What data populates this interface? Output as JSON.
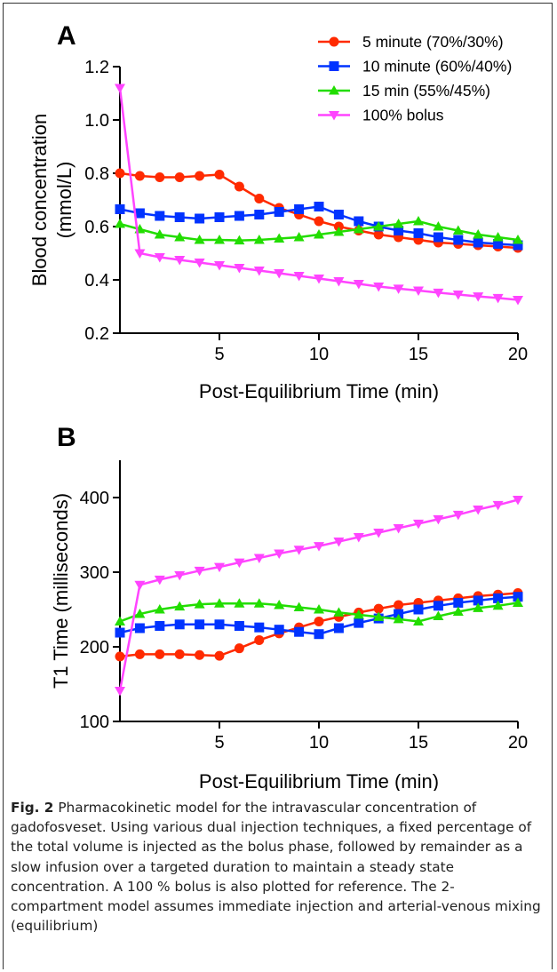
{
  "caption": {
    "label": "Fig. 2",
    "text": "Pharmacokinetic model for the intravascular concentration of gadofosveset. Using various dual injection techniques, a fixed percentage of the total volume is injected as the bolus phase, followed by remainder as a slow infusion over a targeted duration to maintain a steady state concentration. A 100 % bolus is also plotted for reference. The 2-compartment model assumes immediate injection and arterial-venous mixing (equilibrium)"
  },
  "chart_data": [
    {
      "panel": "A",
      "type": "line",
      "xlabel": "Post-Equilibrium Time (min)",
      "ylabel_line1": "Blood concentration",
      "ylabel_line2": "(mmol/L)",
      "xlim": [
        0,
        20
      ],
      "ylim": [
        0.2,
        1.2
      ],
      "xticks": [
        5,
        10,
        15,
        20
      ],
      "yticks": [
        0.2,
        0.4,
        0.6,
        0.8,
        1.0,
        1.2
      ],
      "ytick_labels": [
        "0.2",
        "0.4",
        "0.6",
        "0.8",
        "1.0",
        "1.2"
      ],
      "legend_position": "top-right",
      "x": [
        0,
        1,
        2,
        3,
        4,
        5,
        6,
        7,
        8,
        9,
        10,
        11,
        12,
        13,
        14,
        15,
        16,
        17,
        18,
        19,
        20
      ],
      "series": [
        {
          "name": "5 minute (70%/30%)",
          "color": "#ff2a00",
          "marker": "circle",
          "values": [
            0.8,
            0.79,
            0.785,
            0.785,
            0.79,
            0.795,
            0.75,
            0.705,
            0.67,
            0.645,
            0.62,
            0.6,
            0.585,
            0.57,
            0.56,
            0.55,
            0.54,
            0.535,
            0.53,
            0.525,
            0.52
          ]
        },
        {
          "name": "10 minute (60%/40%)",
          "color": "#0033ff",
          "marker": "square",
          "values": [
            0.665,
            0.65,
            0.64,
            0.635,
            0.63,
            0.635,
            0.64,
            0.645,
            0.655,
            0.665,
            0.675,
            0.645,
            0.62,
            0.6,
            0.585,
            0.575,
            0.56,
            0.55,
            0.54,
            0.535,
            0.53
          ]
        },
        {
          "name": "15 min (55%/45%)",
          "color": "#22dd00",
          "marker": "triangle-up",
          "values": [
            0.61,
            0.59,
            0.57,
            0.56,
            0.55,
            0.55,
            0.548,
            0.55,
            0.555,
            0.56,
            0.57,
            0.58,
            0.59,
            0.6,
            0.61,
            0.62,
            0.6,
            0.585,
            0.57,
            0.56,
            0.55
          ]
        },
        {
          "name": "100% bolus",
          "color": "#ff44ff",
          "marker": "triangle-down",
          "values": [
            1.12,
            0.5,
            0.485,
            0.475,
            0.465,
            0.455,
            0.445,
            0.435,
            0.425,
            0.415,
            0.405,
            0.395,
            0.385,
            0.375,
            0.367,
            0.36,
            0.352,
            0.345,
            0.338,
            0.332,
            0.325
          ]
        }
      ]
    },
    {
      "panel": "B",
      "type": "line",
      "xlabel": "Post-Equilibrium Time (min)",
      "ylabel": "T1 Time (milliseconds)",
      "xlim": [
        0,
        20
      ],
      "ylim": [
        100,
        450
      ],
      "xticks": [
        5,
        10,
        15,
        20
      ],
      "yticks": [
        100,
        200,
        300,
        400
      ],
      "ytick_labels": [
        "100",
        "200",
        "300",
        "400"
      ],
      "x": [
        0,
        1,
        2,
        3,
        4,
        5,
        6,
        7,
        8,
        9,
        10,
        11,
        12,
        13,
        14,
        15,
        16,
        17,
        18,
        19,
        20
      ],
      "series": [
        {
          "color": "#ff2a00",
          "marker": "circle",
          "values": [
            187,
            190,
            190,
            190,
            189,
            188,
            198,
            209,
            218,
            226,
            234,
            240,
            246,
            251,
            256,
            259,
            262,
            265,
            268,
            270,
            272
          ]
        },
        {
          "color": "#0033ff",
          "marker": "square",
          "values": [
            219,
            225,
            228,
            230,
            230,
            230,
            228,
            226,
            223,
            220,
            217,
            225,
            232,
            238,
            244,
            250,
            255,
            259,
            262,
            265,
            267
          ]
        },
        {
          "color": "#22dd00",
          "marker": "triangle-up",
          "values": [
            234,
            244,
            250,
            254,
            257,
            258,
            258,
            258,
            256,
            253,
            250,
            246,
            243,
            240,
            237,
            234,
            241,
            247,
            252,
            255,
            259
          ]
        },
        {
          "color": "#ff44ff",
          "marker": "triangle-down",
          "values": [
            141,
            283,
            290,
            296,
            302,
            307,
            313,
            319,
            325,
            330,
            335,
            341,
            347,
            353,
            359,
            365,
            371,
            377,
            384,
            390,
            397
          ]
        }
      ]
    }
  ]
}
